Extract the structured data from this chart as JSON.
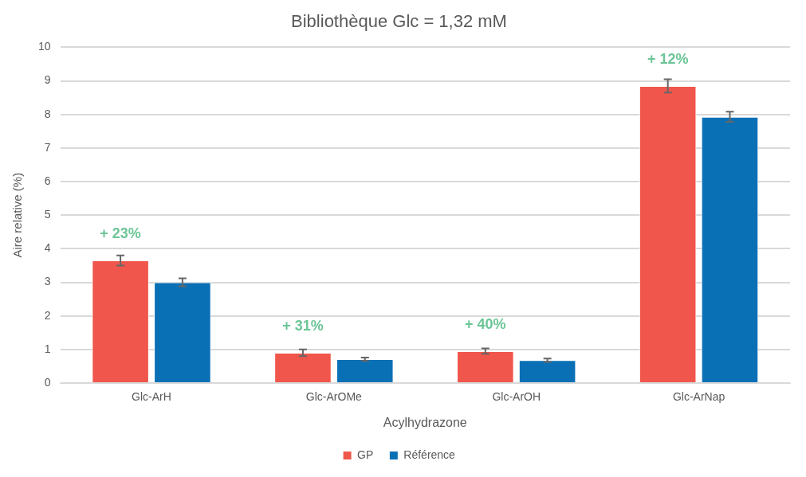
{
  "chart_data": {
    "type": "bar",
    "title": "Bibliothèque Glc = 1,32 mM",
    "xlabel": "Acylhydrazone",
    "ylabel": "Aire relative (%)",
    "categories": [
      "Glc-ArH",
      "Glc-ArOMe",
      "Glc-ArOH",
      "Glc-ArNap"
    ],
    "series": [
      {
        "name": "GP",
        "color": "#f0564b",
        "values": [
          3.65,
          0.9,
          0.95,
          8.85
        ],
        "errors": [
          0.15,
          0.1,
          0.08,
          0.2
        ]
      },
      {
        "name": "Référence",
        "color": "#0a70b6",
        "values": [
          3.0,
          0.71,
          0.68,
          7.93
        ],
        "errors": [
          0.12,
          0.05,
          0.05,
          0.15
        ]
      }
    ],
    "ylim": [
      0,
      10
    ],
    "yticks": [
      0,
      1,
      2,
      3,
      4,
      5,
      6,
      7,
      8,
      9,
      10
    ],
    "grid": "y",
    "legend": "bottom",
    "annotations": [
      {
        "text": "+ 23%",
        "x": "Glc-ArH",
        "y": 3.65
      },
      {
        "text": "+ 31%",
        "x": "Glc-ArOMe",
        "y": 0.9
      },
      {
        "text": "+ 40%",
        "x": "Glc-ArOH",
        "y": 0.95
      },
      {
        "text": "+ 12%",
        "x": "Glc-ArNap",
        "y": 8.85
      }
    ]
  }
}
